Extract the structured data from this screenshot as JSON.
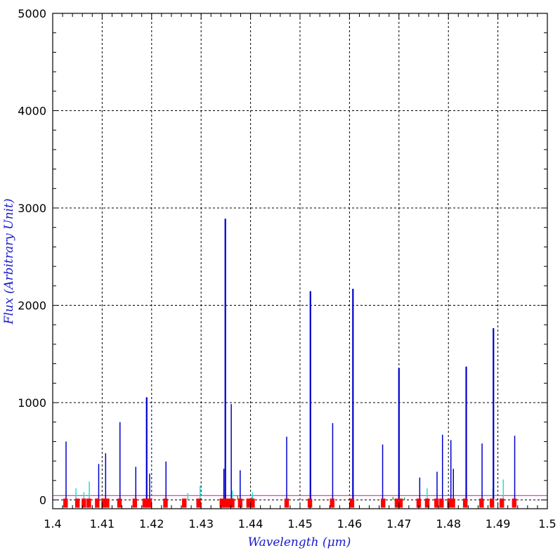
{
  "colors": {
    "background": "#ffffff",
    "frame": "#000000",
    "grid": "#000000",
    "axis_title": "#1a1acc",
    "primary_lines": "#0000cc",
    "secondary_lines": "#22dddd",
    "tertiary_lines": "#22aa22",
    "baseline": "#cc33cc",
    "markers": "#ff0000"
  },
  "chart_data": {
    "type": "bar",
    "xlabel": "Wavelength (μm)",
    "ylabel": "Flux (Arbitrary Unit)",
    "xlim": [
      1.4,
      1.5
    ],
    "ylim": [
      -90,
      5000
    ],
    "grid": true,
    "x_ticks": [
      1.4,
      1.41,
      1.42,
      1.43,
      1.44,
      1.45,
      1.46,
      1.47,
      1.48,
      1.49,
      1.5
    ],
    "x_tick_labels": [
      "1.4",
      "1.41",
      "1.42",
      "1.43",
      "1.44",
      "1.45",
      "1.46",
      "1.47",
      "1.48",
      "1.49",
      "1.5"
    ],
    "y_ticks": [
      0,
      1000,
      2000,
      3000,
      4000,
      5000
    ],
    "y_tick_labels": [
      "0",
      "1000",
      "2000",
      "3000",
      "4000",
      "5000"
    ],
    "baseline_value": 45,
    "series": [
      {
        "color": "#0000cc",
        "x": [
          1.4027,
          1.4093,
          1.4107,
          1.4136,
          1.4168,
          1.419,
          1.4196,
          1.4229,
          1.4346,
          1.4349,
          1.4361,
          1.4379,
          1.4473,
          1.4521,
          1.4566,
          1.4607,
          1.4667,
          1.47,
          1.4742,
          1.4777,
          1.4788,
          1.4805,
          1.481,
          1.4836,
          1.4868,
          1.4891,
          1.4934
        ],
        "values": [
          600,
          370,
          480,
          800,
          340,
          1055,
          270,
          395,
          320,
          2890,
          985,
          305,
          650,
          2145,
          790,
          2170,
          570,
          1355,
          230,
          290,
          670,
          615,
          320,
          1370,
          580,
          1765,
          660
        ]
      },
      {
        "color": "#22dddd",
        "x": [
          1.4047,
          1.4063,
          1.4074,
          1.4168,
          1.4273,
          1.4298,
          1.4363,
          1.4404,
          1.4757,
          1.489,
          1.4911
        ],
        "values": [
          120,
          80,
          190,
          130,
          70,
          145,
          95,
          80,
          120,
          115,
          210
        ]
      },
      {
        "color": "#22aa22",
        "x": [
          1.4374,
          1.4402,
          1.4688,
          1.4711
        ],
        "values": [
          40,
          30,
          30,
          25
        ]
      }
    ],
    "marker_x": [
      1.4026,
      1.405,
      1.4063,
      1.4073,
      1.409,
      1.4103,
      1.411,
      1.4135,
      1.4166,
      1.4186,
      1.4192,
      1.4196,
      1.4228,
      1.4266,
      1.4295,
      1.4342,
      1.4347,
      1.4352,
      1.4358,
      1.4363,
      1.4379,
      1.4396,
      1.4404,
      1.4473,
      1.452,
      1.4565,
      1.4605,
      1.4668,
      1.4696,
      1.4703,
      1.474,
      1.4757,
      1.4776,
      1.4786,
      1.4802,
      1.4809,
      1.4834,
      1.4867,
      1.4888,
      1.4908,
      1.4933
    ]
  }
}
